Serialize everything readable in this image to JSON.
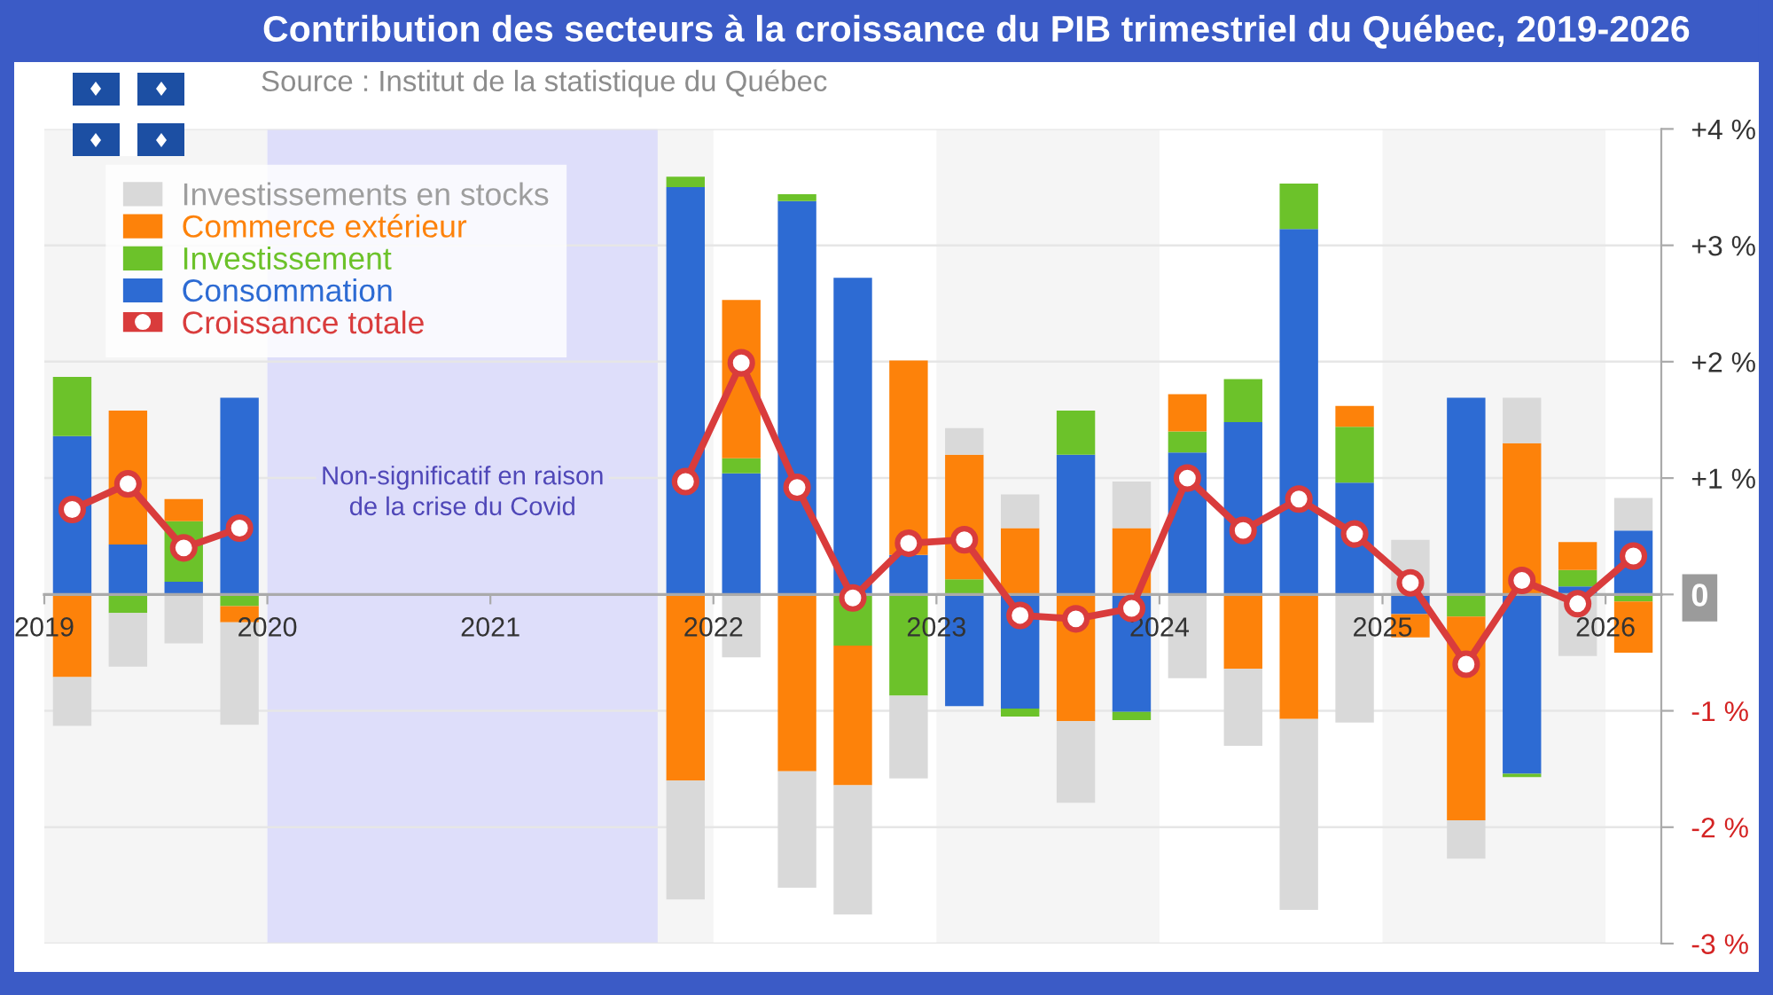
{
  "chart_data": {
    "type": "bar",
    "title": "Contribution des secteurs à la croissance du PIB trimestriel du Québec, 2019-2026",
    "annotations": [
      "Source : Institut de la statistique du Québec"
    ],
    "x": [
      2019.125,
      2019.375,
      2019.625,
      2019.875,
      2020.125,
      2020.375,
      2020.625,
      2020.875,
      2021.125,
      2021.375,
      2021.625,
      2021.875,
      2022.125,
      2022.375,
      2022.625,
      2022.875,
      2023.125,
      2023.375,
      2023.625,
      2023.875,
      2024.125,
      2024.375,
      2024.625,
      2024.875,
      2025.125,
      2025.375,
      2025.625,
      2025.875,
      2026.125
    ],
    "stacked": true,
    "series": [
      {
        "name": "Consommation",
        "color": "#2d6bd3",
        "values": [
          1.36,
          0.43,
          0.11,
          1.69,
          null,
          null,
          null,
          null,
          null,
          null,
          null,
          3.5,
          1.04,
          3.38,
          2.72,
          0.34,
          -0.96,
          -0.98,
          1.2,
          -1.01,
          1.22,
          1.48,
          3.14,
          0.96,
          -0.17,
          1.69,
          -1.54,
          0.07,
          0.55
        ]
      },
      {
        "name": "Investissement",
        "color": "#6cc22a",
        "values": [
          0.51,
          -0.16,
          0.52,
          -0.1,
          null,
          null,
          null,
          null,
          null,
          null,
          null,
          0.09,
          0.13,
          0.06,
          -0.44,
          -0.87,
          0.13,
          -0.07,
          0.38,
          -0.07,
          0.18,
          0.37,
          0.39,
          0.48,
          null,
          -0.19,
          -0.03,
          0.14,
          -0.06
        ]
      },
      {
        "name": "Commerce extérieur",
        "color": "#fd820a",
        "values": [
          -0.71,
          1.15,
          0.19,
          -0.14,
          null,
          null,
          null,
          null,
          null,
          null,
          null,
          -1.6,
          1.36,
          -1.52,
          -1.2,
          1.67,
          1.07,
          0.57,
          -1.09,
          0.57,
          0.32,
          -0.64,
          -1.07,
          0.18,
          -0.2,
          -1.75,
          1.3,
          0.24,
          -0.44
        ]
      },
      {
        "name": "Investissements en stocks",
        "color": "#d9d9d9",
        "values": [
          -0.42,
          -0.46,
          -0.42,
          -0.88,
          null,
          null,
          null,
          null,
          null,
          null,
          null,
          -1.02,
          -0.54,
          -1.0,
          -1.11,
          -0.71,
          0.23,
          0.29,
          -0.7,
          0.4,
          -0.72,
          -0.66,
          -1.64,
          -1.1,
          0.47,
          -0.33,
          0.39,
          -0.53,
          0.28
        ]
      },
      {
        "name": "Croissance totale",
        "type": "line",
        "marker": "circle",
        "color": "#d93c3c",
        "values": [
          0.73,
          0.95,
          0.4,
          0.57,
          null,
          null,
          null,
          null,
          null,
          null,
          null,
          0.97,
          1.99,
          0.92,
          -0.03,
          0.44,
          0.47,
          -0.18,
          -0.21,
          -0.12,
          1.0,
          0.55,
          0.82,
          0.52,
          0.1,
          -0.6,
          0.12,
          -0.08,
          0.33
        ]
      }
    ],
    "xlim": [
      2019,
      2026.25
    ],
    "xticks": [
      2019,
      2020,
      2021,
      2022,
      2023,
      2024,
      2025,
      2026
    ],
    "ylim": [
      -3,
      4
    ],
    "yticks": [
      {
        "value": 4,
        "label": "+4 %"
      },
      {
        "value": 3,
        "label": "+3 %"
      },
      {
        "value": 2,
        "label": "+2 %"
      },
      {
        "value": 1,
        "label": "+1 %"
      },
      0,
      {
        "value": -1,
        "label": "-1 %"
      },
      {
        "value": -2,
        "label": "-2 %"
      },
      {
        "value": -3,
        "label": "-3 %"
      }
    ],
    "bands": [
      {
        "axis": "x",
        "from": 2019,
        "to": 2020,
        "color": "#f5f5f5"
      },
      {
        "axis": "x",
        "from": 2021,
        "to": 2022,
        "color": "#f5f5f5"
      },
      {
        "axis": "x",
        "from": 2023,
        "to": 2024,
        "color": "#f5f5f5"
      },
      {
        "axis": "x",
        "from": 2025,
        "to": 2026,
        "color": "#f5f5f5"
      },
      {
        "axis": "x",
        "from": 2020,
        "to": 2021.75,
        "color": "#dedefa",
        "label": "Non-significatif en raison\nde la crise du Covid"
      }
    ],
    "grid": "y",
    "legend": "top left"
  }
}
